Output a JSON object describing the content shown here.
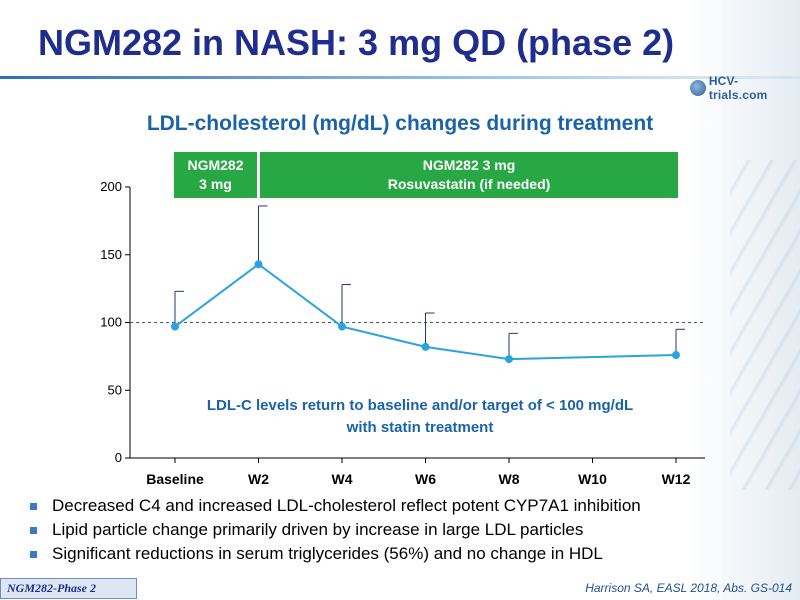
{
  "slide": {
    "title": "NGM282 in NASH: 3 mg QD (phase 2)",
    "logo_text": "HCV-trials.com",
    "footer_left": "NGM282-Phase 2",
    "footer_right": "Harrison SA, EASL 2018, Abs. GS-014",
    "accent_color": "#1f2d8f",
    "band_color": "#28a745",
    "line_color": "#2aa3e0"
  },
  "bands": {
    "first": {
      "line1": "NGM282",
      "line2": "3 mg"
    },
    "second": {
      "line1": "NGM282 3 mg",
      "line2": "Rosuvastatin  (if needed)"
    }
  },
  "annotation": {
    "line1": "LDL-C levels return to baseline and/or target of < 100 mg/dL",
    "line2": "with statin treatment"
  },
  "bullets": [
    "Decreased C4 and increased LDL-cholesterol reflect potent CYP7A1 inhibition",
    "Lipid particle change primarily driven by increase in large LDL particles",
    "Significant reductions in serum triglycerides (56%) and no change in HDL"
  ],
  "chart_data": {
    "type": "line",
    "title": "LDL-cholesterol (mg/dL) changes during treatment",
    "categories": [
      "Baseline",
      "W2",
      "W4",
      "W6",
      "W8",
      "W10",
      "W12"
    ],
    "series": [
      {
        "points": [
          {
            "x": "Baseline",
            "y": 97,
            "err_upper": 123
          },
          {
            "x": "W2",
            "y": 143,
            "err_upper": 186
          },
          {
            "x": "W4",
            "y": 97,
            "err_upper": 128
          },
          {
            "x": "W6",
            "y": 82,
            "err_upper": 107
          },
          {
            "x": "W8",
            "y": 73,
            "err_upper": 92
          },
          {
            "x": "W12",
            "y": 76,
            "err_upper": 95
          }
        ]
      }
    ],
    "yticks": [
      0,
      50,
      100,
      150,
      200
    ],
    "ylim": [
      0,
      200
    ],
    "reference_line": 100,
    "grid": false
  }
}
